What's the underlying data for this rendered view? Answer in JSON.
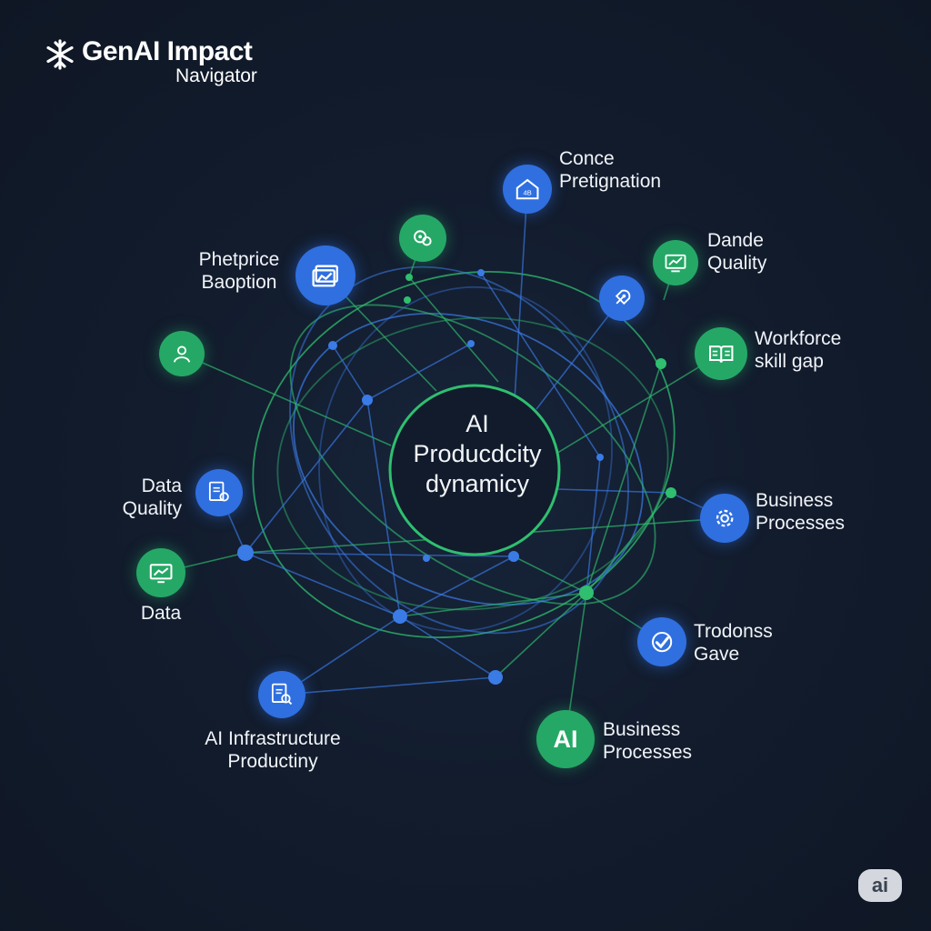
{
  "brand": {
    "title": "GenAI Impact",
    "subtitle": "Navigator",
    "logo_icon": "snowflake-icon"
  },
  "hub": {
    "label_lines": [
      "AI",
      "Producdcity",
      "dynamicy"
    ]
  },
  "nodes": [
    {
      "id": "conce",
      "icon": "house-icon",
      "color": "blue",
      "label_lines": [
        "Conce",
        "Pretignation"
      ]
    },
    {
      "id": "sprocket",
      "icon": "gears-icon",
      "color": "green",
      "label_lines": []
    },
    {
      "id": "dande",
      "icon": "chart-monitor-icon",
      "color": "green",
      "label_lines": [
        "Dande",
        "Quality"
      ]
    },
    {
      "id": "rocket",
      "icon": "rocket-icon",
      "color": "blue",
      "label_lines": []
    },
    {
      "id": "phetprice",
      "icon": "image-chart-icon",
      "color": "blue",
      "label_lines": [
        "Phetprice",
        "Baoption"
      ]
    },
    {
      "id": "person",
      "icon": "person-icon",
      "color": "green",
      "label_lines": []
    },
    {
      "id": "workforce",
      "icon": "book-icon",
      "color": "green",
      "label_lines": [
        "Workforce",
        "skill gap"
      ]
    },
    {
      "id": "data-quality",
      "icon": "document-badge-icon",
      "color": "blue",
      "label_lines": [
        "Data",
        "Quality"
      ]
    },
    {
      "id": "business-1",
      "icon": "gear-icon",
      "color": "blue",
      "label_lines": [
        "Business",
        "Processes"
      ]
    },
    {
      "id": "data",
      "icon": "monitor-chart-icon",
      "color": "green",
      "label_lines": [
        "Data"
      ]
    },
    {
      "id": "trodonss",
      "icon": "check-icon",
      "color": "blue",
      "label_lines": [
        "Trodonss",
        "Gave"
      ]
    },
    {
      "id": "infra",
      "icon": "document-search-icon",
      "color": "blue",
      "label_lines": [
        "AI Infrastructure",
        "Productiny"
      ]
    },
    {
      "id": "business-2",
      "icon": "ai-badge-icon",
      "icon_text": "AI",
      "color": "green",
      "label_lines": [
        "Business",
        "Processes"
      ]
    }
  ],
  "colors": {
    "background": "#111a29",
    "blue": "#2f6fe0",
    "green": "#25a866",
    "link_blue": "#3a7be6",
    "link_green": "#2fbf6f"
  },
  "watermark": {
    "text": "ai"
  }
}
